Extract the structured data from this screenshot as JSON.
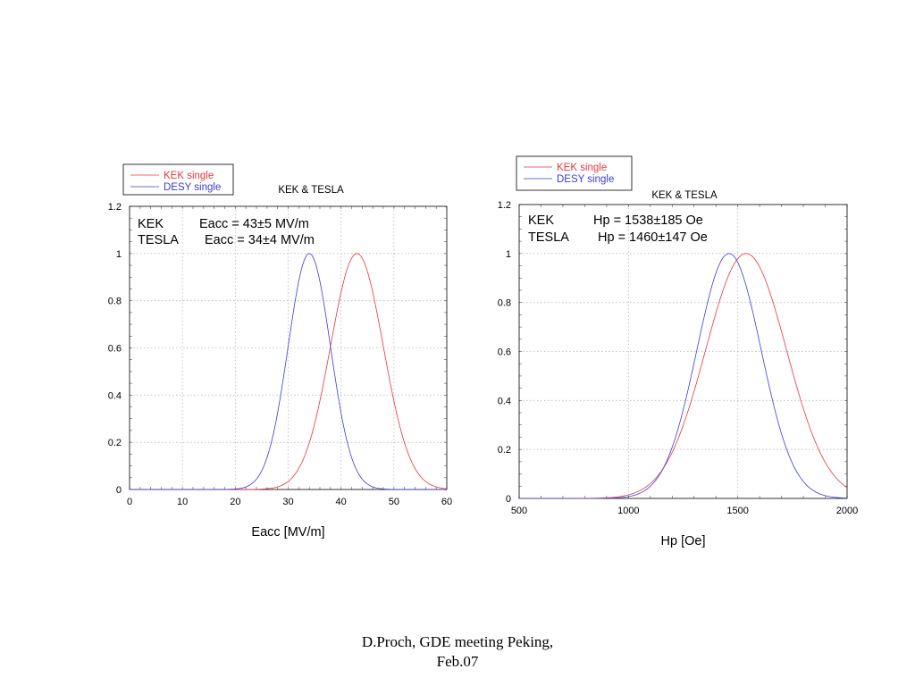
{
  "footer": {
    "line1": "D.Proch, GDE meeting Peking,",
    "line2": "Feb.07"
  },
  "colors": {
    "kek": "#e8363a",
    "desy": "#3b3bd6",
    "grid": "#b8b8b8",
    "frame": "#000000"
  },
  "chart_data": [
    {
      "type": "line",
      "title": "KEK & TESLA",
      "xlabel": "Eacc [MV/m]",
      "ylabel": "",
      "xlim": [
        0,
        60
      ],
      "ylim": [
        0,
        1.2
      ],
      "x_ticks": [
        0,
        10,
        20,
        30,
        40,
        50,
        60
      ],
      "y_ticks": [
        0,
        0.2,
        0.4,
        0.6,
        0.8,
        1,
        1.2
      ],
      "grid": true,
      "legend": {
        "placement": "top-left outside",
        "entries": [
          "KEK single",
          "DESY single"
        ]
      },
      "annotations": [
        {
          "name": "KEK",
          "text": "Eacc = 43±5 MV/m"
        },
        {
          "name": "TESLA",
          "text": "Eacc = 34±4 MV/m"
        }
      ],
      "series": [
        {
          "name": "KEK single",
          "color": "#e8363a",
          "mean": 43,
          "sigma": 5,
          "x": [
            0,
            5,
            10,
            15,
            20,
            22,
            24,
            26,
            28,
            30,
            32,
            34,
            36,
            38,
            40,
            42,
            43,
            44,
            46,
            48,
            50,
            52,
            54,
            56,
            58,
            60
          ],
          "y": [
            0,
            0,
            0,
            0,
            0,
            0.0001,
            0.0007,
            0.0031,
            0.0111,
            0.034,
            0.0889,
            0.1979,
            0.3753,
            0.6065,
            0.8353,
            0.9802,
            1,
            0.9802,
            0.8353,
            0.6065,
            0.3753,
            0.1979,
            0.0889,
            0.034,
            0.0111,
            0.0031
          ]
        },
        {
          "name": "DESY single",
          "color": "#3b3bd6",
          "mean": 34,
          "sigma": 4,
          "x": [
            0,
            5,
            10,
            15,
            18,
            20,
            22,
            24,
            26,
            28,
            30,
            32,
            34,
            36,
            38,
            40,
            42,
            44,
            46,
            48,
            50,
            52,
            55,
            60
          ],
          "y": [
            0,
            0,
            0,
            0,
            0.0003,
            0.0022,
            0.0111,
            0.0439,
            0.1353,
            0.3247,
            0.6065,
            0.8825,
            1,
            0.8825,
            0.6065,
            0.3247,
            0.1353,
            0.0439,
            0.0111,
            0.0022,
            0.0003,
            4e-05,
            0,
            0
          ]
        }
      ]
    },
    {
      "type": "line",
      "title": "KEK & TESLA",
      "xlabel": "Hp [Oe]",
      "ylabel": "",
      "xlim": [
        500,
        2000
      ],
      "ylim": [
        0,
        1.2
      ],
      "x_ticks": [
        500,
        1000,
        1500,
        2000
      ],
      "y_ticks": [
        0,
        0.2,
        0.4,
        0.6,
        0.8,
        1,
        1.2
      ],
      "grid": true,
      "legend": {
        "placement": "top-left outside",
        "entries": [
          "KEK single",
          "DESY single"
        ]
      },
      "annotations": [
        {
          "name": "KEK",
          "text": "Hp = 1538±185 Oe"
        },
        {
          "name": "TESLA",
          "text": "Hp = 1460±147 Oe"
        }
      ],
      "series": [
        {
          "name": "KEK single",
          "color": "#e8363a",
          "mean": 1538,
          "sigma": 185,
          "x": [
            500,
            800,
            900,
            1000,
            1100,
            1200,
            1300,
            1400,
            1500,
            1538,
            1600,
            1700,
            1800,
            1900,
            2000
          ],
          "y": [
            0.0,
            0.0003,
            0.0026,
            0.0147,
            0.061,
            0.1878,
            0.4372,
            0.7575,
            0.9791,
            1,
            0.9454,
            0.6815,
            0.3679,
            0.1488,
            0.0441
          ]
        },
        {
          "name": "DESY single",
          "color": "#3b3bd6",
          "mean": 1460,
          "sigma": 147,
          "x": [
            500,
            800,
            900,
            1000,
            1100,
            1200,
            1300,
            1400,
            1460,
            1500,
            1600,
            1700,
            1800,
            1900,
            2000
          ],
          "y": [
            0.0,
            0.0,
            0.0007,
            0.0075,
            0.0498,
            0.2093,
            0.5532,
            0.9201,
            1,
            0.9636,
            0.6355,
            0.2637,
            0.0689,
            0.0113,
            0.0012
          ]
        }
      ]
    }
  ]
}
